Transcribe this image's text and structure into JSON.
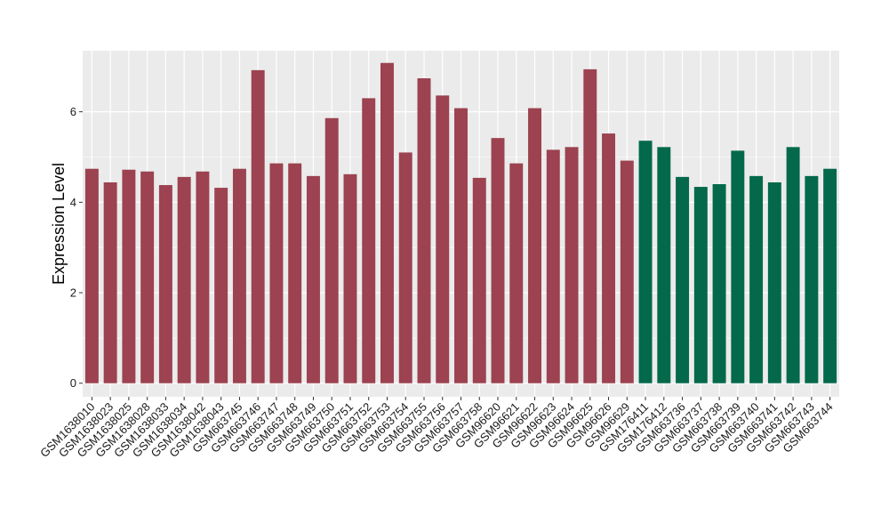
{
  "chart_data": {
    "type": "bar",
    "ylabel": "Expression Level",
    "xlabel": "",
    "ylim": [
      -0.3,
      7.35
    ],
    "yticks": [
      0,
      2,
      4,
      6
    ],
    "grid": true,
    "categories": [
      "GSM1638010",
      "GSM1638023",
      "GSM1638025",
      "GSM1638028",
      "GSM1638033",
      "GSM1638034",
      "GSM1638042",
      "GSM1638043",
      "GSM663745",
      "GSM663746",
      "GSM663747",
      "GSM663748",
      "GSM663749",
      "GSM663750",
      "GSM663751",
      "GSM663752",
      "GSM663753",
      "GSM663754",
      "GSM663755",
      "GSM663756",
      "GSM663757",
      "GSM663758",
      "GSM96620",
      "GSM96621",
      "GSM96622",
      "GSM96623",
      "GSM96624",
      "GSM96625",
      "GSM96626",
      "GSM96629",
      "GSM176411",
      "GSM176412",
      "GSM663736",
      "GSM663737",
      "GSM663738",
      "GSM663739",
      "GSM663740",
      "GSM663741",
      "GSM663742",
      "GSM663743",
      "GSM663744"
    ],
    "values": [
      4.74,
      4.44,
      4.72,
      4.68,
      4.38,
      4.56,
      4.68,
      4.32,
      4.74,
      6.92,
      4.86,
      4.86,
      4.58,
      5.86,
      4.62,
      6.3,
      7.08,
      5.1,
      6.74,
      6.36,
      6.08,
      4.54,
      5.42,
      4.86,
      6.08,
      5.16,
      5.22,
      6.94,
      5.52,
      4.92,
      5.36,
      5.22,
      4.56,
      4.34,
      4.4,
      5.14,
      4.58,
      4.44,
      5.22,
      4.58,
      4.74
    ],
    "bar_colors": [
      "#9c4250",
      "#9c4250",
      "#9c4250",
      "#9c4250",
      "#9c4250",
      "#9c4250",
      "#9c4250",
      "#9c4250",
      "#9c4250",
      "#9c4250",
      "#9c4250",
      "#9c4250",
      "#9c4250",
      "#9c4250",
      "#9c4250",
      "#9c4250",
      "#9c4250",
      "#9c4250",
      "#9c4250",
      "#9c4250",
      "#9c4250",
      "#9c4250",
      "#9c4250",
      "#9c4250",
      "#9c4250",
      "#9c4250",
      "#9c4250",
      "#9c4250",
      "#9c4250",
      "#9c4250",
      "#03694a",
      "#03694a",
      "#03694a",
      "#03694a",
      "#03694a",
      "#03694a",
      "#03694a",
      "#03694a",
      "#03694a",
      "#03694a",
      "#03694a"
    ],
    "panel_background": "#ebebeb",
    "grid_color": "#ffffff"
  }
}
